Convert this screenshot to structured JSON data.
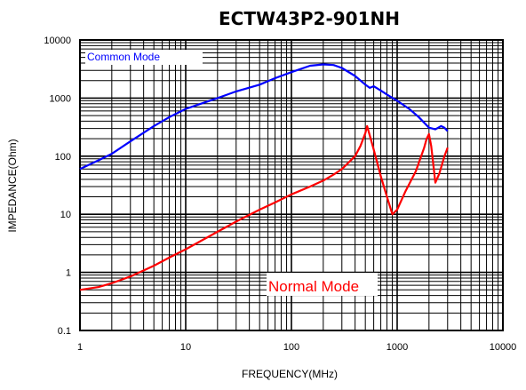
{
  "chart_data": {
    "type": "line",
    "title": "ECTW43P2-901NH",
    "xlabel": "FREQUENCY(MHz)",
    "ylabel": "IMPEDANCE(Ohm)",
    "x_scale": "log",
    "y_scale": "log",
    "xlim": [
      1,
      10000
    ],
    "ylim": [
      0.1,
      10000
    ],
    "x_ticks": [
      "1",
      "10",
      "100",
      "1000",
      "10000"
    ],
    "y_ticks": [
      "10000",
      "1000",
      "100",
      "10",
      "1",
      "0.1"
    ],
    "grid": true,
    "series": [
      {
        "name": "Common Mode",
        "color": "#0000ff",
        "x": [
          1,
          1.5,
          2,
          3,
          5,
          7,
          10,
          20,
          30,
          50,
          70,
          100,
          150,
          200,
          250,
          300,
          400,
          500,
          550,
          600,
          700,
          800,
          1000,
          1300,
          1600,
          2000,
          2300,
          2600,
          2800,
          3000
        ],
        "y": [
          60,
          85,
          110,
          180,
          330,
          470,
          650,
          1000,
          1300,
          1700,
          2200,
          2800,
          3600,
          3800,
          3700,
          3300,
          2400,
          1700,
          1500,
          1600,
          1350,
          1150,
          900,
          650,
          470,
          310,
          290,
          330,
          310,
          270
        ]
      },
      {
        "name": "Normal Mode",
        "color": "#ff0000",
        "x": [
          1,
          1.5,
          2,
          3,
          5,
          7,
          10,
          20,
          30,
          50,
          70,
          100,
          150,
          200,
          250,
          300,
          400,
          450,
          500,
          520,
          600,
          700,
          800,
          900,
          1000,
          1200,
          1500,
          1800,
          1900,
          2000,
          2100,
          2300,
          2500,
          2800,
          3000
        ],
        "y": [
          0.5,
          0.56,
          0.65,
          0.85,
          1.3,
          1.8,
          2.5,
          5,
          7.5,
          12,
          16,
          22,
          30,
          38,
          48,
          60,
          100,
          150,
          250,
          330,
          130,
          45,
          20,
          10,
          12,
          25,
          55,
          140,
          200,
          240,
          150,
          35,
          50,
          100,
          140
        ]
      }
    ]
  }
}
